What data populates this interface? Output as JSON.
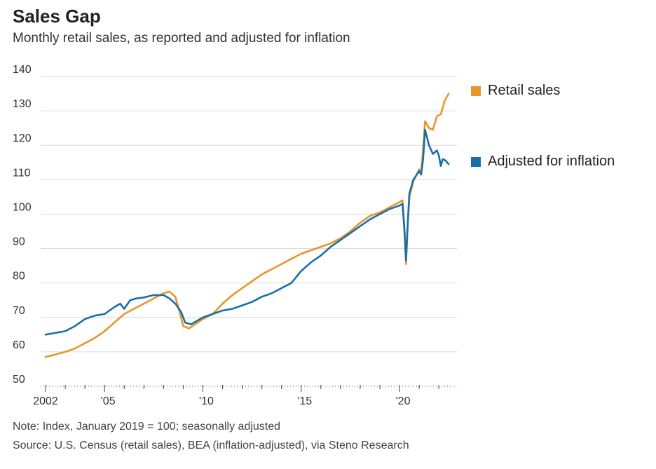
{
  "header": {
    "title": "Sales Gap",
    "subtitle": "Monthly retail sales, as reported and adjusted for inflation"
  },
  "footer": {
    "note": "Note: Index, January 2019 = 100; seasonally adjusted",
    "source": "Source: U.S. Census (retail sales), BEA (inflation-adjusted), via Steno Research"
  },
  "legend": [
    {
      "label": "Retail sales",
      "color": "#e8962a"
    },
    {
      "label": "Adjusted for inflation",
      "color": "#1a6fa8"
    }
  ],
  "chart_data": {
    "type": "line",
    "title": "Sales Gap",
    "subtitle": "Monthly retail sales, as reported and adjusted for inflation",
    "xlabel": "",
    "ylabel": "",
    "xlim": [
      2002,
      2022.6
    ],
    "ylim": [
      50,
      140
    ],
    "y_ticks": [
      50,
      60,
      70,
      80,
      90,
      100,
      110,
      120,
      130,
      140
    ],
    "x_ticks": [
      {
        "value": 2002,
        "label": "2002"
      },
      {
        "value": 2005,
        "label": "'05"
      },
      {
        "value": 2010,
        "label": "'10"
      },
      {
        "value": 2015,
        "label": "'15"
      },
      {
        "value": 2020,
        "label": "'20"
      }
    ],
    "grid": "horizontal",
    "legend_position": "right",
    "series": [
      {
        "name": "Retail sales",
        "color": "#e8962a",
        "points": [
          [
            2002.0,
            58.5
          ],
          [
            2002.5,
            59.2
          ],
          [
            2003.0,
            60.0
          ],
          [
            2003.5,
            61.0
          ],
          [
            2004.0,
            62.5
          ],
          [
            2004.5,
            64.0
          ],
          [
            2005.0,
            66.0
          ],
          [
            2005.5,
            68.5
          ],
          [
            2006.0,
            71.0
          ],
          [
            2006.5,
            72.5
          ],
          [
            2007.0,
            74.0
          ],
          [
            2007.5,
            75.5
          ],
          [
            2008.0,
            77.0
          ],
          [
            2008.3,
            77.5
          ],
          [
            2008.6,
            76.0
          ],
          [
            2008.8,
            72.0
          ],
          [
            2009.0,
            67.5
          ],
          [
            2009.3,
            66.8
          ],
          [
            2009.6,
            68.0
          ],
          [
            2010.0,
            69.5
          ],
          [
            2010.5,
            71.0
          ],
          [
            2011.0,
            74.0
          ],
          [
            2011.5,
            76.5
          ],
          [
            2012.0,
            78.5
          ],
          [
            2012.5,
            80.5
          ],
          [
            2013.0,
            82.5
          ],
          [
            2013.5,
            84.0
          ],
          [
            2014.0,
            85.5
          ],
          [
            2014.5,
            87.0
          ],
          [
            2015.0,
            88.5
          ],
          [
            2015.5,
            89.5
          ],
          [
            2016.0,
            90.5
          ],
          [
            2016.5,
            91.5
          ],
          [
            2017.0,
            93.0
          ],
          [
            2017.5,
            95.0
          ],
          [
            2018.0,
            97.5
          ],
          [
            2018.5,
            99.5
          ],
          [
            2019.0,
            100.5
          ],
          [
            2019.5,
            102.0
          ],
          [
            2020.0,
            103.5
          ],
          [
            2020.15,
            104.0
          ],
          [
            2020.25,
            96.0
          ],
          [
            2020.33,
            85.5
          ],
          [
            2020.42,
            97.0
          ],
          [
            2020.5,
            105.0
          ],
          [
            2020.7,
            109.5
          ],
          [
            2021.0,
            113.0
          ],
          [
            2021.1,
            112.0
          ],
          [
            2021.2,
            119.0
          ],
          [
            2021.3,
            127.0
          ],
          [
            2021.5,
            125.0
          ],
          [
            2021.7,
            124.5
          ],
          [
            2021.9,
            128.5
          ],
          [
            2022.1,
            129.0
          ],
          [
            2022.3,
            133.0
          ],
          [
            2022.5,
            135.0
          ]
        ]
      },
      {
        "name": "Adjusted for inflation",
        "color": "#1a6fa8",
        "points": [
          [
            2002.0,
            65.0
          ],
          [
            2002.5,
            65.5
          ],
          [
            2003.0,
            66.0
          ],
          [
            2003.5,
            67.5
          ],
          [
            2004.0,
            69.5
          ],
          [
            2004.5,
            70.5
          ],
          [
            2005.0,
            71.0
          ],
          [
            2005.5,
            73.0
          ],
          [
            2005.8,
            74.0
          ],
          [
            2006.0,
            72.5
          ],
          [
            2006.3,
            75.0
          ],
          [
            2006.6,
            75.5
          ],
          [
            2007.0,
            75.8
          ],
          [
            2007.5,
            76.5
          ],
          [
            2008.0,
            76.5
          ],
          [
            2008.3,
            75.5
          ],
          [
            2008.6,
            74.0
          ],
          [
            2008.9,
            71.5
          ],
          [
            2009.1,
            68.5
          ],
          [
            2009.4,
            68.0
          ],
          [
            2009.7,
            69.0
          ],
          [
            2010.0,
            70.0
          ],
          [
            2010.5,
            71.0
          ],
          [
            2011.0,
            72.0
          ],
          [
            2011.5,
            72.5
          ],
          [
            2012.0,
            73.5
          ],
          [
            2012.5,
            74.5
          ],
          [
            2013.0,
            76.0
          ],
          [
            2013.5,
            77.0
          ],
          [
            2014.0,
            78.5
          ],
          [
            2014.5,
            80.0
          ],
          [
            2015.0,
            83.5
          ],
          [
            2015.5,
            86.0
          ],
          [
            2016.0,
            88.0
          ],
          [
            2016.5,
            90.5
          ],
          [
            2017.0,
            92.5
          ],
          [
            2017.5,
            94.5
          ],
          [
            2018.0,
            96.5
          ],
          [
            2018.5,
            98.5
          ],
          [
            2019.0,
            100.0
          ],
          [
            2019.5,
            101.5
          ],
          [
            2020.0,
            102.5
          ],
          [
            2020.15,
            103.0
          ],
          [
            2020.25,
            95.0
          ],
          [
            2020.33,
            86.5
          ],
          [
            2020.42,
            97.5
          ],
          [
            2020.5,
            106.0
          ],
          [
            2020.7,
            110.0
          ],
          [
            2021.0,
            112.5
          ],
          [
            2021.1,
            111.5
          ],
          [
            2021.2,
            116.0
          ],
          [
            2021.3,
            124.5
          ],
          [
            2021.5,
            120.0
          ],
          [
            2021.7,
            117.5
          ],
          [
            2021.9,
            118.5
          ],
          [
            2022.0,
            117.0
          ],
          [
            2022.1,
            114.0
          ],
          [
            2022.2,
            116.0
          ],
          [
            2022.35,
            115.5
          ],
          [
            2022.5,
            114.5
          ]
        ]
      }
    ]
  }
}
